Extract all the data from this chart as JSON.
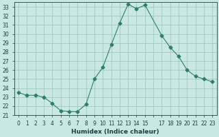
{
  "x": [
    0,
    1,
    2,
    3,
    4,
    5,
    6,
    7,
    8,
    9,
    10,
    11,
    12,
    13,
    14,
    15,
    17,
    18,
    19,
    20,
    21,
    22,
    23
  ],
  "y": [
    23.5,
    23.2,
    23.2,
    23.0,
    22.3,
    21.5,
    21.4,
    21.4,
    22.2,
    25.0,
    26.3,
    28.8,
    31.2,
    33.3,
    32.8,
    33.2,
    29.8,
    28.5,
    27.5,
    26.0,
    25.3,
    25.0,
    24.7
  ],
  "line_color": "#2e7d6e",
  "marker": "D",
  "marker_size": 2.5,
  "bg_color": "#c8e8e0",
  "grid_color": "#a0c8c0",
  "xlabel": "Humidex (Indice chaleur)",
  "ylim": [
    21,
    33.5
  ],
  "xlim": [
    -0.5,
    23.5
  ],
  "yticks": [
    21,
    22,
    23,
    24,
    25,
    26,
    27,
    28,
    29,
    30,
    31,
    32,
    33
  ],
  "xtick_labels": [
    "0",
    "1",
    "2",
    "3",
    "4",
    "5",
    "6",
    "7",
    "8",
    "9",
    "10",
    "11",
    "12",
    "13",
    "14",
    "15",
    "",
    "17",
    "18",
    "19",
    "20",
    "21",
    "22",
    "23"
  ],
  "xtick_positions": [
    0,
    1,
    2,
    3,
    4,
    5,
    6,
    7,
    8,
    9,
    10,
    11,
    12,
    13,
    14,
    15,
    16,
    17,
    18,
    19,
    20,
    21,
    22,
    23
  ],
  "font_color": "#1a4040",
  "xlabel_fontsize": 6.5,
  "tick_fontsize": 5.5
}
